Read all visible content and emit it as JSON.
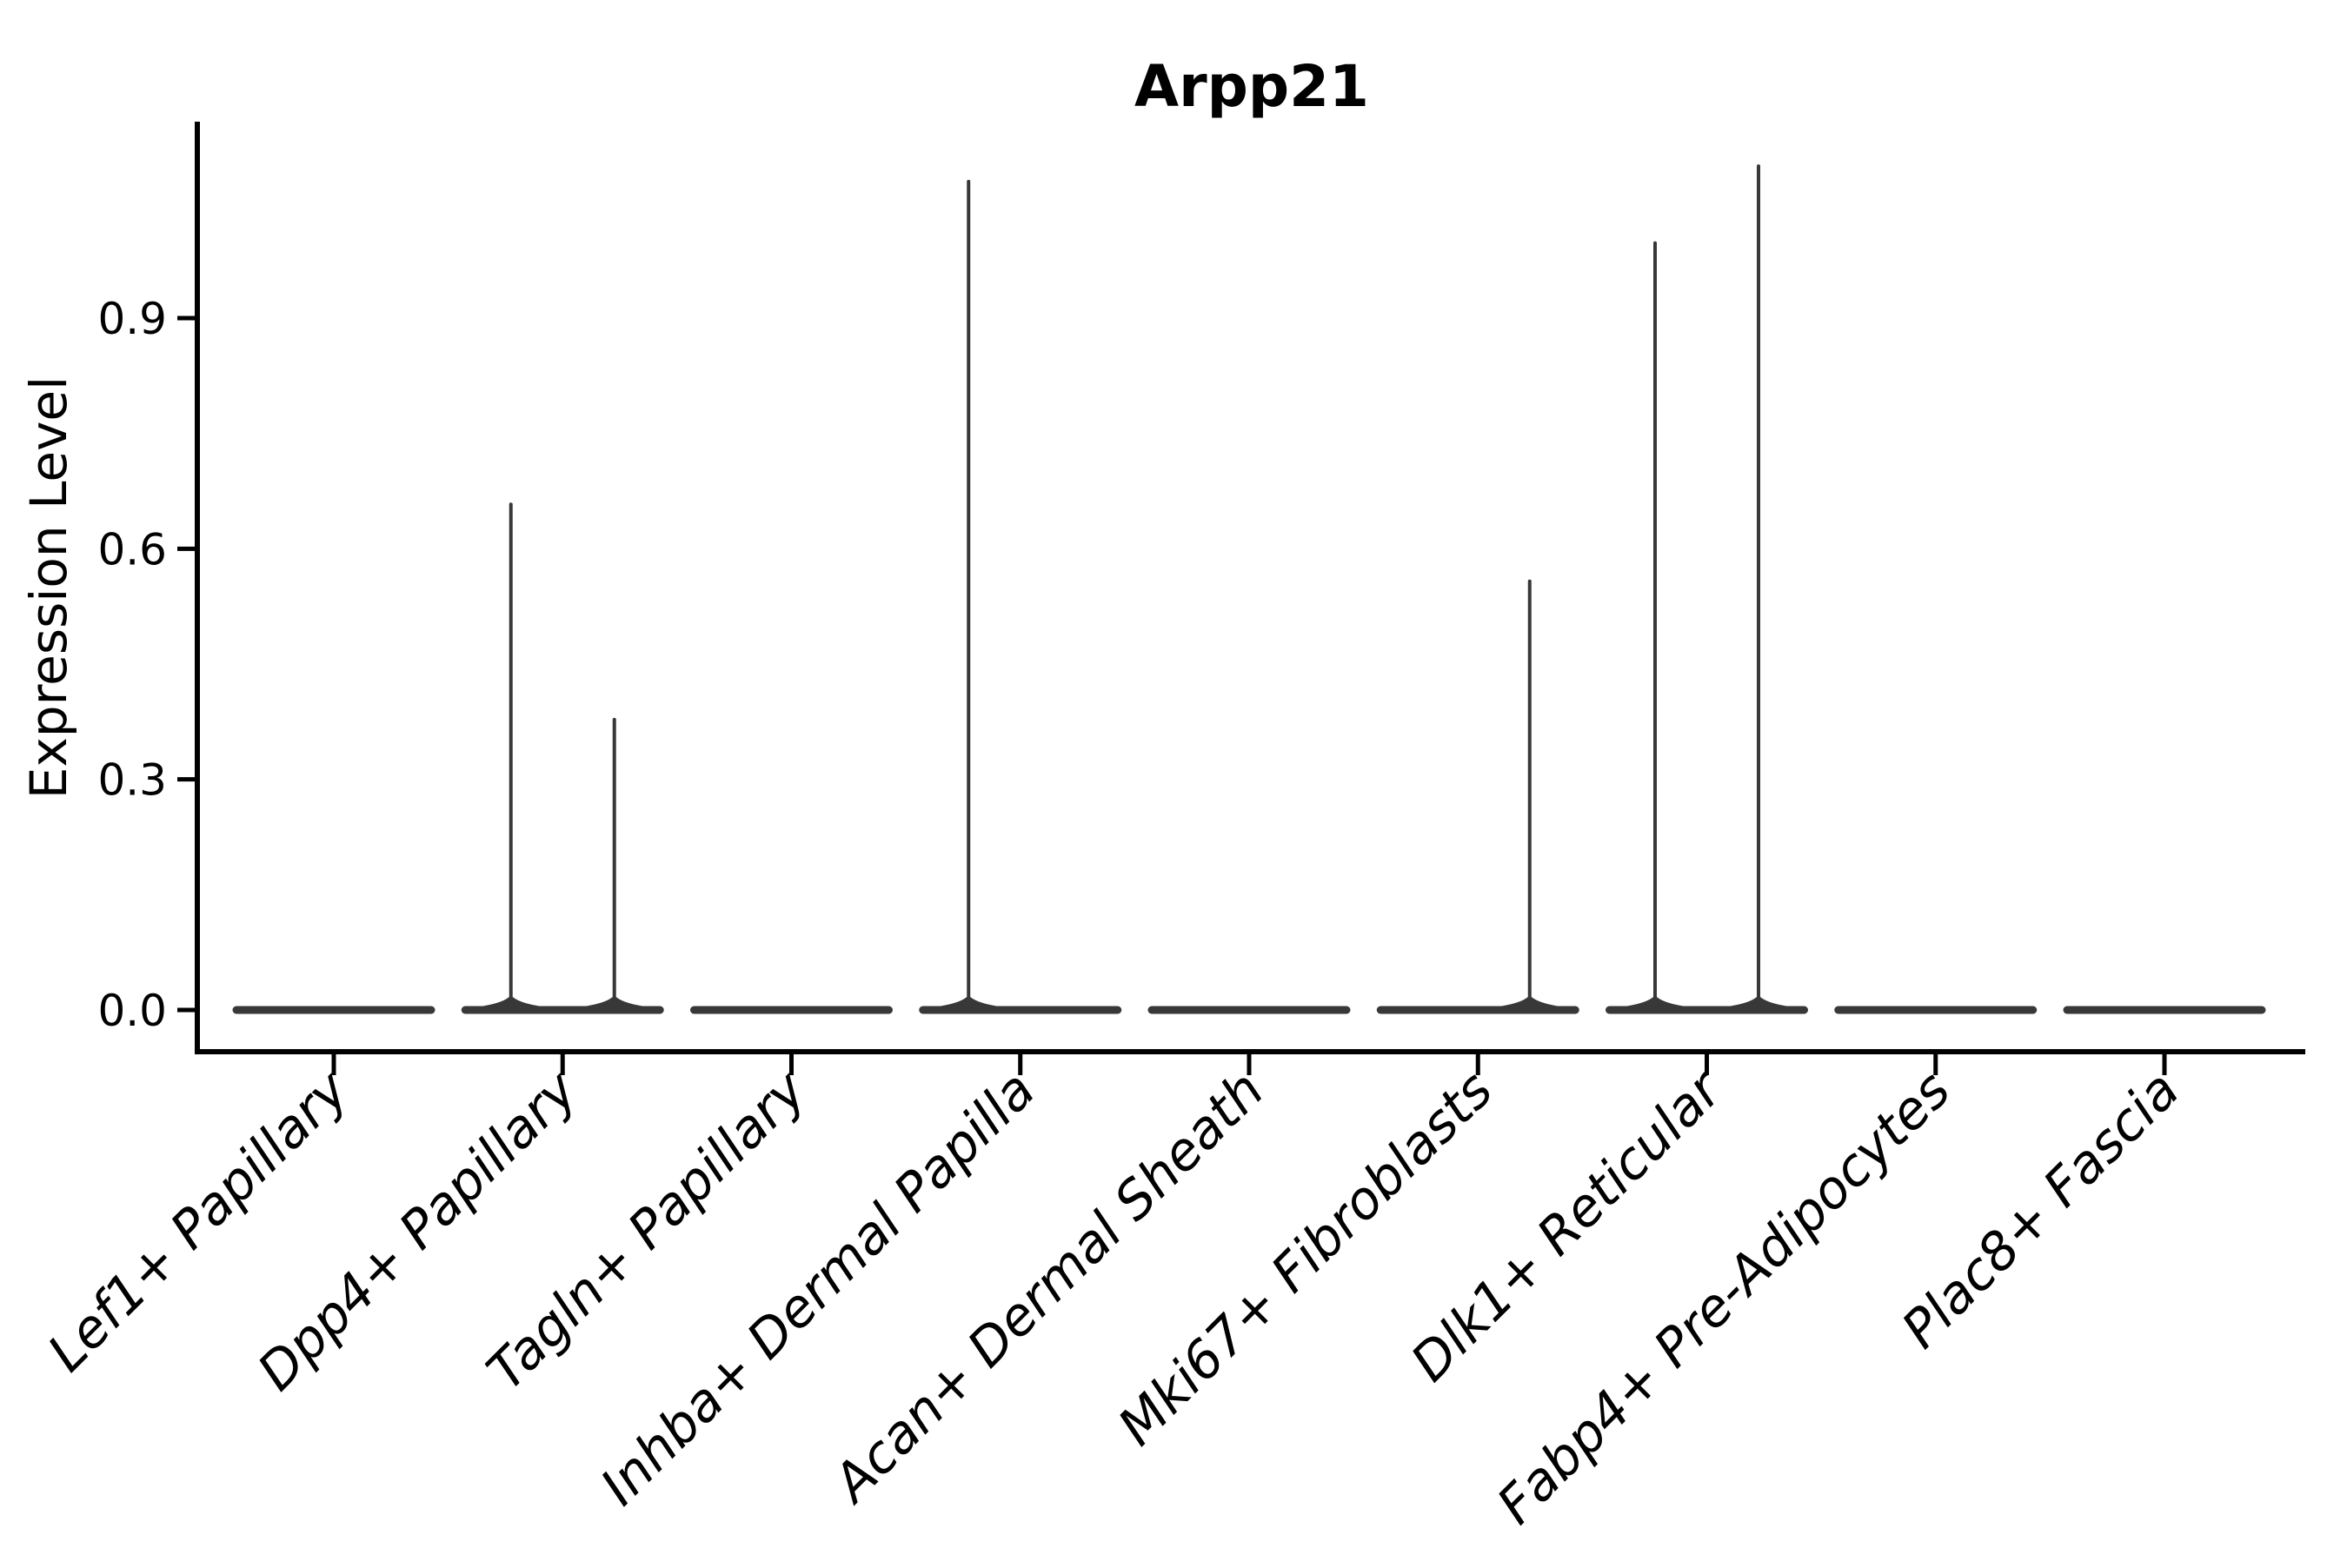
{
  "figure": {
    "title": "Arpp21",
    "ylabel": "Expression Level"
  },
  "chart_data": {
    "type": "violin",
    "title": "Arpp21",
    "xlabel": "",
    "ylabel": "Expression Level",
    "legend": "none",
    "grid": false,
    "y_ticks": [
      "0.0",
      "0.3",
      "0.6",
      "0.9"
    ],
    "ylim": [
      -0.02,
      1.16
    ],
    "categories": [
      "Lef1+ Papillary",
      "Dpp4+ Papillary",
      "Tagln+ Papillary",
      "Inhba+ Dermal Papilla",
      "Acan+ Dermal Sheath",
      "Mki67+ Fibroblasts",
      "Dlk1+ Reticular",
      "Fabp4+ Pre-Adipocytes",
      "Plac8+ Fascia"
    ],
    "violins": [
      {
        "category": "Lef1+ Papillary",
        "baseline_value": 0,
        "spikes": []
      },
      {
        "category": "Dpp4+ Papillary",
        "baseline_value": 0,
        "spikes": [
          {
            "side": "left",
            "max_value": 0.66
          },
          {
            "side": "right",
            "max_value": 0.38
          }
        ]
      },
      {
        "category": "Tagln+ Papillary",
        "baseline_value": 0,
        "spikes": []
      },
      {
        "category": "Inhba+ Dermal Papilla",
        "baseline_value": 0,
        "spikes": [
          {
            "side": "left",
            "max_value": 1.08
          }
        ]
      },
      {
        "category": "Acan+ Dermal Sheath",
        "baseline_value": 0,
        "spikes": []
      },
      {
        "category": "Mki67+ Fibroblasts",
        "baseline_value": 0,
        "spikes": [
          {
            "side": "right",
            "max_value": 0.56
          }
        ]
      },
      {
        "category": "Dlk1+ Reticular",
        "baseline_value": 0,
        "spikes": [
          {
            "side": "left",
            "max_value": 1.0
          },
          {
            "side": "right",
            "max_value": 1.1
          }
        ]
      },
      {
        "category": "Fabp4+ Pre-Adipocytes",
        "baseline_value": 0,
        "spikes": []
      },
      {
        "category": "Plac8+ Fascia",
        "baseline_value": 0,
        "spikes": []
      }
    ],
    "colors": {
      "violin": "#383838",
      "axis": "#000000",
      "text": "#000000",
      "background": "#ffffff"
    }
  }
}
